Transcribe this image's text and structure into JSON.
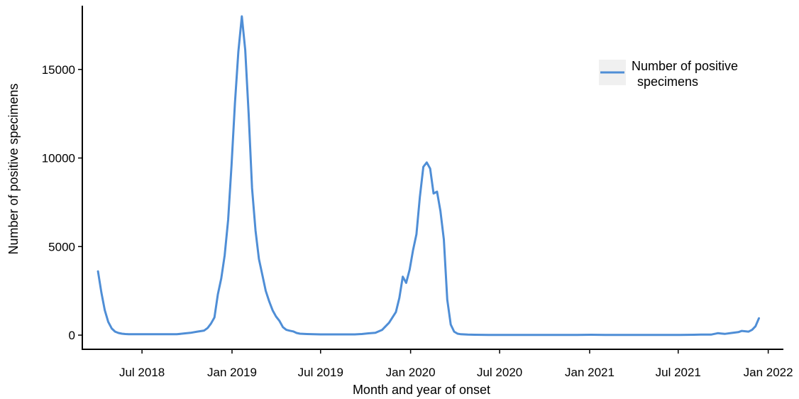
{
  "chart_data": {
    "type": "line",
    "xlabel": "Month and year of onset",
    "ylabel": "Number of positive specimens",
    "x_ticks": [
      {
        "date": "2018-07-01",
        "label": "Jul 2018"
      },
      {
        "date": "2019-01-01",
        "label": "Jan 2019"
      },
      {
        "date": "2019-07-01",
        "label": "Jul 2019"
      },
      {
        "date": "2020-01-01",
        "label": "Jan 2020"
      },
      {
        "date": "2020-07-01",
        "label": "Jul 2020"
      },
      {
        "date": "2021-01-01",
        "label": "Jan 2021"
      },
      {
        "date": "2021-07-01",
        "label": "Jul 2021"
      },
      {
        "date": "2022-01-01",
        "label": "Jan 2022"
      }
    ],
    "y_ticks": [
      0,
      5000,
      10000,
      15000
    ],
    "xlim": [
      "2018-03-01",
      "2022-02-01"
    ],
    "ylim": [
      -800,
      18600
    ],
    "grid": false,
    "legend": {
      "position": "top-right",
      "entries": [
        "Number of positive specimens"
      ]
    },
    "colors": {
      "series": "#4f8ed6",
      "legend_key_bg": "#f0f0f0",
      "axis": "#000000"
    },
    "series": [
      {
        "name": "Number of positive specimens",
        "points": [
          [
            "2018-04-02",
            3600
          ],
          [
            "2018-04-09",
            2400
          ],
          [
            "2018-04-16",
            1400
          ],
          [
            "2018-04-23",
            750
          ],
          [
            "2018-04-30",
            380
          ],
          [
            "2018-05-07",
            200
          ],
          [
            "2018-05-14",
            120
          ],
          [
            "2018-05-21",
            80
          ],
          [
            "2018-05-28",
            60
          ],
          [
            "2018-06-04",
            50
          ],
          [
            "2018-06-11",
            50
          ],
          [
            "2018-06-18",
            50
          ],
          [
            "2018-07-02",
            50
          ],
          [
            "2018-07-16",
            50
          ],
          [
            "2018-07-30",
            50
          ],
          [
            "2018-08-13",
            50
          ],
          [
            "2018-08-27",
            50
          ],
          [
            "2018-09-10",
            50
          ],
          [
            "2018-09-24",
            90
          ],
          [
            "2018-10-08",
            130
          ],
          [
            "2018-10-22",
            200
          ],
          [
            "2018-11-05",
            260
          ],
          [
            "2018-11-12",
            400
          ],
          [
            "2018-11-19",
            650
          ],
          [
            "2018-11-26",
            1000
          ],
          [
            "2018-12-03",
            2300
          ],
          [
            "2018-12-10",
            3200
          ],
          [
            "2018-12-17",
            4500
          ],
          [
            "2018-12-24",
            6500
          ],
          [
            "2018-12-31",
            9600
          ],
          [
            "2019-01-07",
            13100
          ],
          [
            "2019-01-14",
            16000
          ],
          [
            "2019-01-21",
            18000
          ],
          [
            "2019-01-28",
            16100
          ],
          [
            "2019-02-04",
            12500
          ],
          [
            "2019-02-11",
            8300
          ],
          [
            "2019-02-18",
            5900
          ],
          [
            "2019-02-25",
            4300
          ],
          [
            "2019-03-04",
            3400
          ],
          [
            "2019-03-11",
            2500
          ],
          [
            "2019-03-18",
            1900
          ],
          [
            "2019-03-25",
            1400
          ],
          [
            "2019-04-01",
            1050
          ],
          [
            "2019-04-08",
            800
          ],
          [
            "2019-04-15",
            450
          ],
          [
            "2019-04-22",
            300
          ],
          [
            "2019-04-29",
            250
          ],
          [
            "2019-05-06",
            210
          ],
          [
            "2019-05-13",
            120
          ],
          [
            "2019-05-20",
            80
          ],
          [
            "2019-06-03",
            60
          ],
          [
            "2019-06-17",
            50
          ],
          [
            "2019-07-01",
            40
          ],
          [
            "2019-07-15",
            40
          ],
          [
            "2019-07-29",
            40
          ],
          [
            "2019-08-12",
            40
          ],
          [
            "2019-08-26",
            40
          ],
          [
            "2019-09-09",
            40
          ],
          [
            "2019-09-23",
            60
          ],
          [
            "2019-10-07",
            100
          ],
          [
            "2019-10-21",
            130
          ],
          [
            "2019-11-04",
            300
          ],
          [
            "2019-11-18",
            700
          ],
          [
            "2019-12-02",
            1300
          ],
          [
            "2019-12-09",
            2100
          ],
          [
            "2019-12-16",
            3300
          ],
          [
            "2019-12-23",
            2950
          ],
          [
            "2019-12-30",
            3700
          ],
          [
            "2020-01-06",
            4800
          ],
          [
            "2020-01-13",
            5700
          ],
          [
            "2020-01-20",
            7800
          ],
          [
            "2020-01-27",
            9500
          ],
          [
            "2020-02-03",
            9750
          ],
          [
            "2020-02-10",
            9400
          ],
          [
            "2020-02-17",
            8000
          ],
          [
            "2020-02-24",
            8100
          ],
          [
            "2020-03-02",
            7000
          ],
          [
            "2020-03-09",
            5400
          ],
          [
            "2020-03-16",
            2000
          ],
          [
            "2020-03-23",
            600
          ],
          [
            "2020-03-30",
            200
          ],
          [
            "2020-04-06",
            80
          ],
          [
            "2020-04-13",
            50
          ],
          [
            "2020-04-27",
            30
          ],
          [
            "2020-05-11",
            20
          ],
          [
            "2020-06-08",
            15
          ],
          [
            "2020-07-06",
            15
          ],
          [
            "2020-08-03",
            15
          ],
          [
            "2020-09-07",
            15
          ],
          [
            "2020-10-05",
            15
          ],
          [
            "2020-11-02",
            15
          ],
          [
            "2020-12-07",
            15
          ],
          [
            "2021-01-04",
            20
          ],
          [
            "2021-02-01",
            15
          ],
          [
            "2021-03-01",
            15
          ],
          [
            "2021-04-05",
            15
          ],
          [
            "2021-05-03",
            15
          ],
          [
            "2021-06-07",
            15
          ],
          [
            "2021-07-05",
            15
          ],
          [
            "2021-08-02",
            20
          ],
          [
            "2021-08-16",
            30
          ],
          [
            "2021-09-06",
            30
          ],
          [
            "2021-09-20",
            110
          ],
          [
            "2021-10-04",
            70
          ],
          [
            "2021-10-18",
            120
          ],
          [
            "2021-11-01",
            170
          ],
          [
            "2021-11-08",
            240
          ],
          [
            "2021-11-22",
            200
          ],
          [
            "2021-11-29",
            300
          ],
          [
            "2021-12-06",
            500
          ],
          [
            "2021-12-13",
            950
          ]
        ]
      }
    ]
  }
}
